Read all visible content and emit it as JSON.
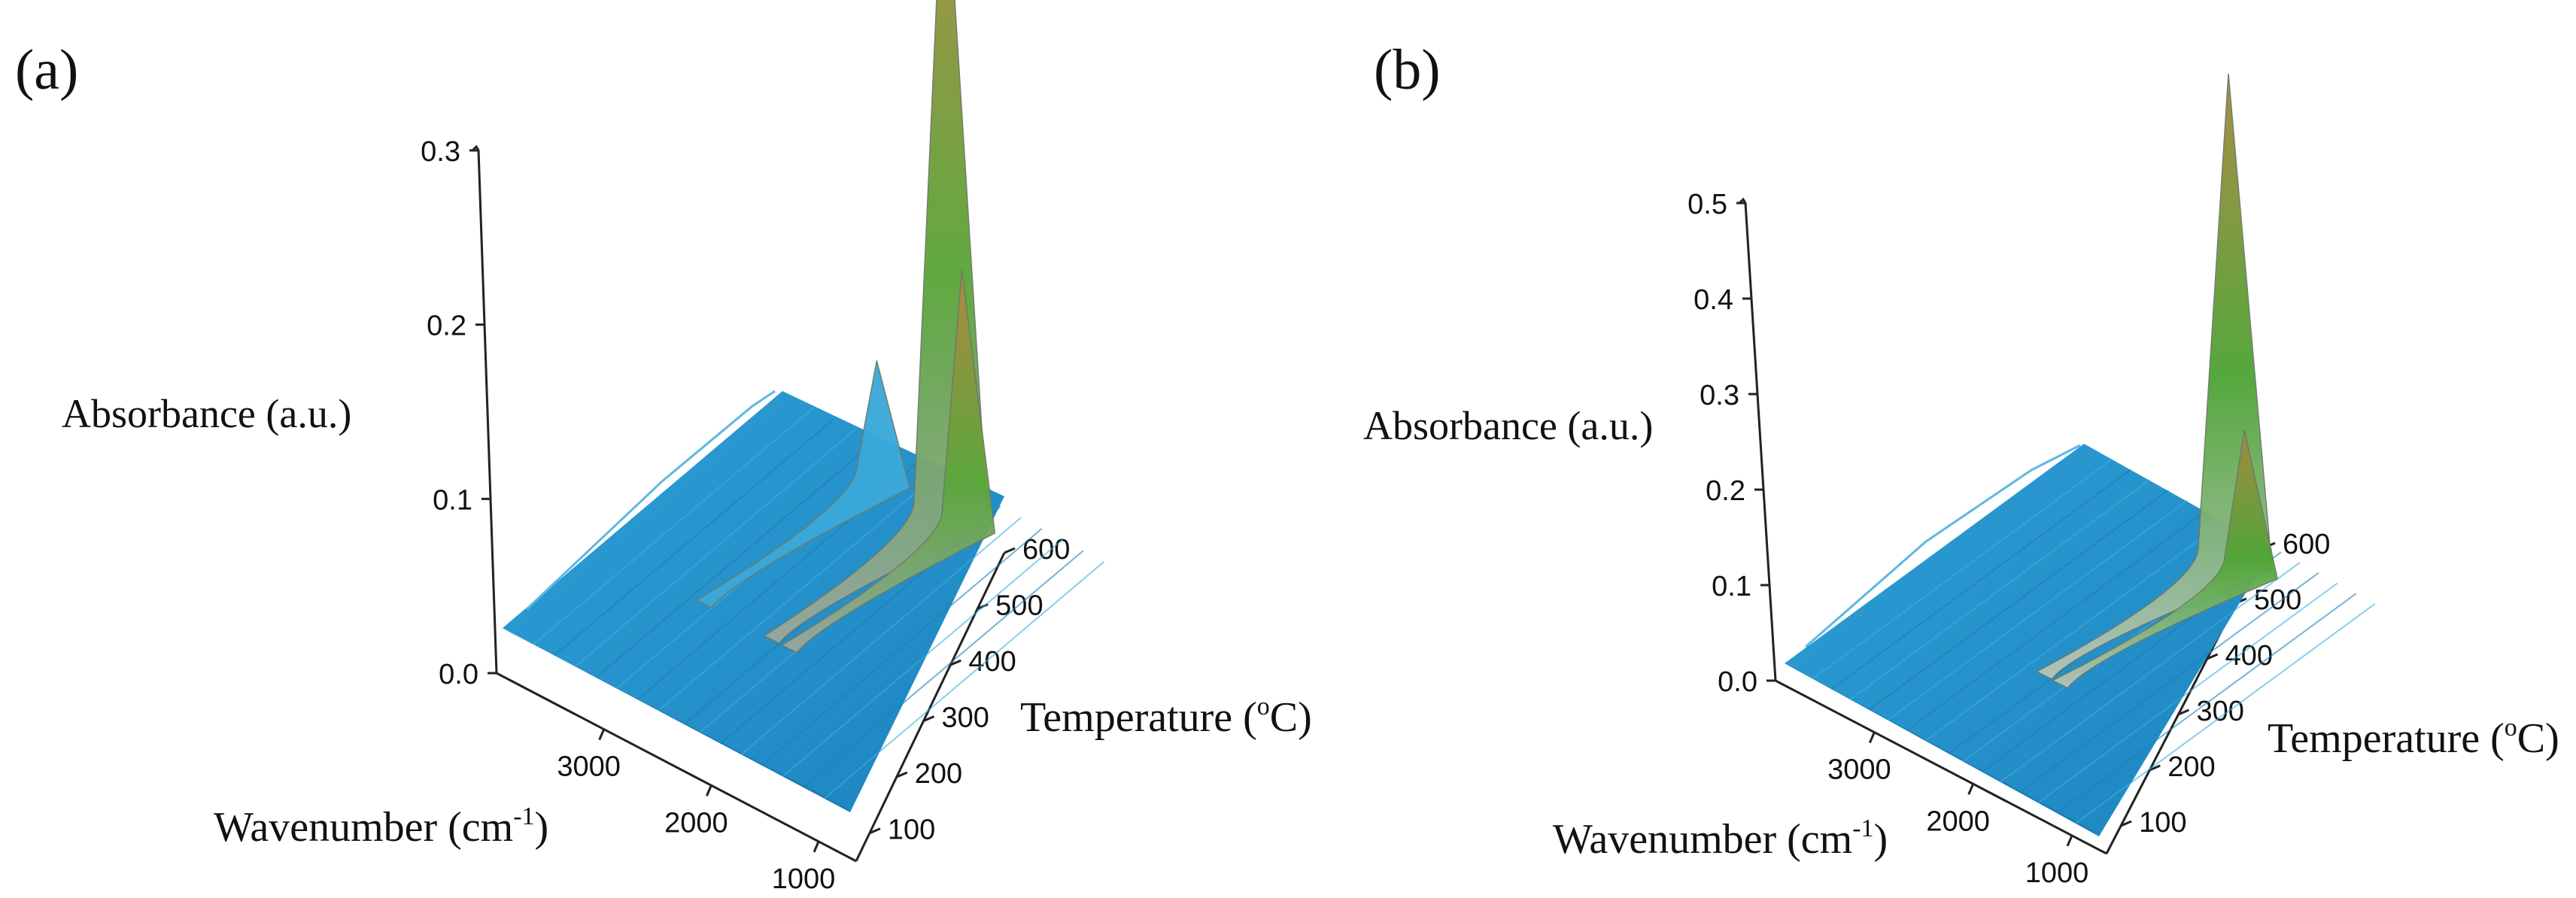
{
  "chart_data": [
    {
      "type": "surface3d",
      "panel_label": "(a)",
      "zlabel": "Absorbance (a.u.)",
      "xlabel_main": "Wavenumber (cm",
      "xlabel_sup": "-1",
      "xlabel_end": ")",
      "ylabel_main": "Temperature (",
      "ylabel_sup": "o",
      "ylabel_end": "C)",
      "zticks": [
        "0.0",
        "0.1",
        "0.2",
        "0.3"
      ],
      "xticks": [
        "3000",
        "2000",
        "1000"
      ],
      "yticks": [
        "100",
        "200",
        "300",
        "400",
        "500",
        "600"
      ],
      "zlim": [
        0,
        0.3
      ],
      "xlim": [
        4000,
        650
      ],
      "ylim": [
        50,
        600
      ],
      "baseline_absorbance": 0.02,
      "peaks": [
        {
          "wavenumber": 2350,
          "temperature": 600,
          "absorbance": 0.34,
          "color": "#8a7a3a"
        },
        {
          "wavenumber": 2180,
          "temperature": 600,
          "absorbance": 0.12,
          "color": "#7fa25a"
        },
        {
          "wavenumber": 3000,
          "temperature": 600,
          "absorbance": 0.05,
          "color": "#3aa8d8"
        }
      ],
      "colors": {
        "surface": "#2a9fd6",
        "surface_dark": "#1b78b0",
        "peak_low": "#9aa7a0",
        "peak_mid": "#5aa63a",
        "peak_top": "#b08a40"
      }
    },
    {
      "type": "surface3d",
      "panel_label": "(b)",
      "zlabel": "Absorbance (a.u.)",
      "xlabel_main": "Wavenumber (cm",
      "xlabel_sup": "-1",
      "xlabel_end": ")",
      "ylabel_main": "Temperature (",
      "ylabel_sup": "o",
      "ylabel_end": "C)",
      "zticks": [
        "0.0",
        "0.1",
        "0.2",
        "0.3",
        "0.4",
        "0.5"
      ],
      "xticks": [
        "3000",
        "2000",
        "1000"
      ],
      "yticks": [
        "100",
        "200",
        "300",
        "400",
        "500",
        "600"
      ],
      "zlim": [
        0,
        0.5
      ],
      "xlim": [
        4000,
        650
      ],
      "ylim": [
        50,
        600
      ],
      "baseline_absorbance": 0.03,
      "peaks": [
        {
          "wavenumber": 2350,
          "temperature": 600,
          "absorbance": 0.55,
          "color": "#8a7a3a"
        },
        {
          "wavenumber": 2180,
          "temperature": 600,
          "absorbance": 0.14,
          "color": "#7fa25a"
        }
      ],
      "colors": {
        "surface": "#2a9fd6",
        "surface_dark": "#1b78b0",
        "peak_low": "#9aa7a0",
        "peak_mid": "#5aa63a",
        "peak_top": "#b08a40"
      }
    }
  ]
}
